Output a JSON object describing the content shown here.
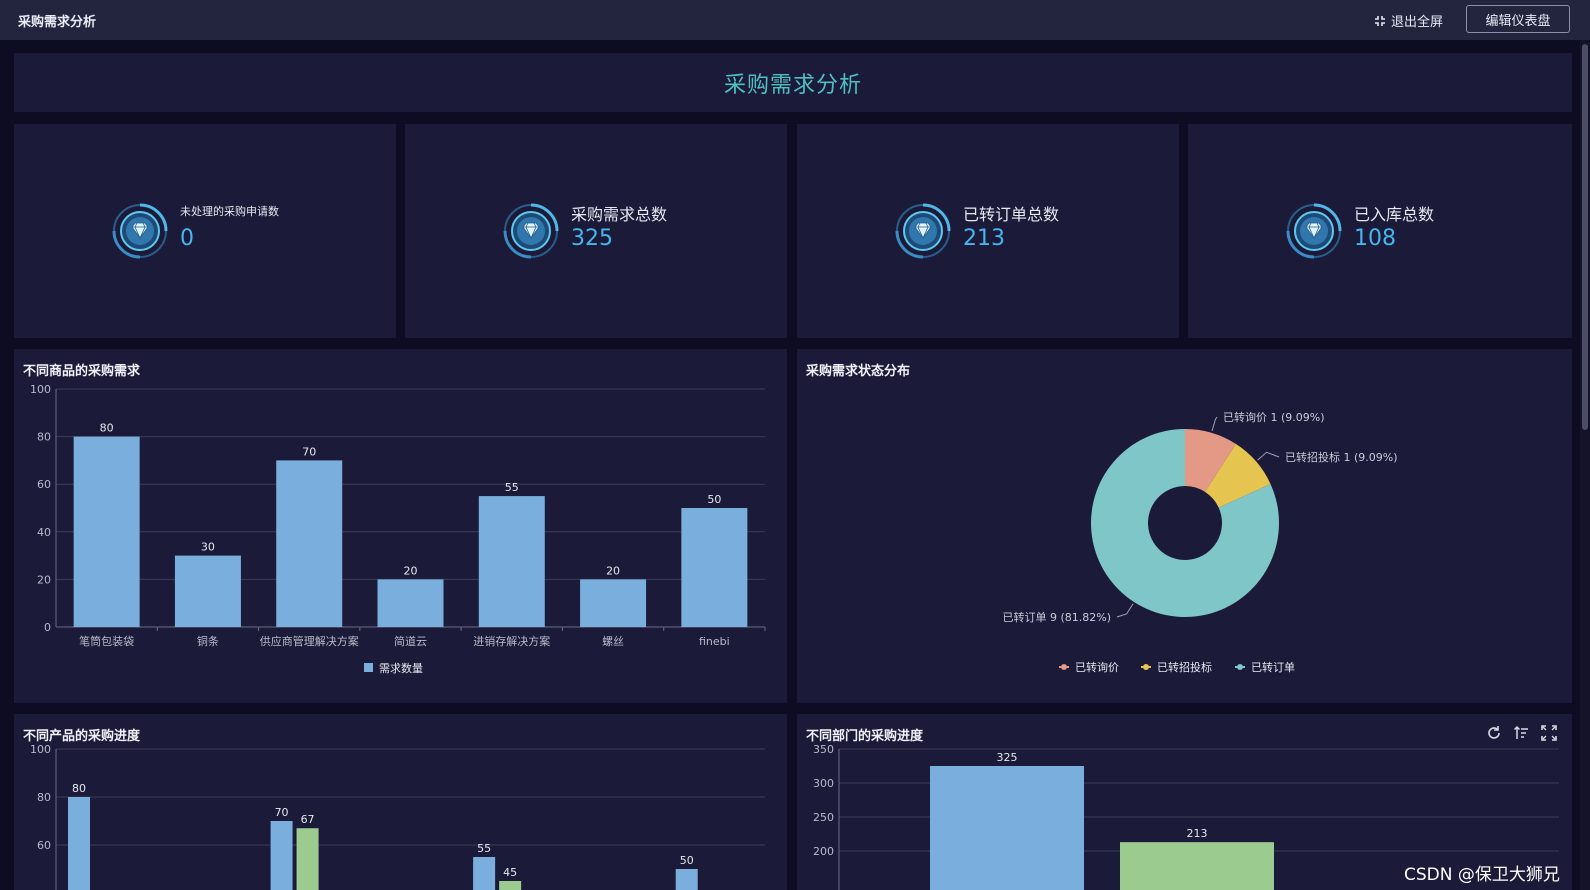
{
  "topbar": {
    "title": "采购需求分析",
    "exit_fullscreen": "退出全屏",
    "edit_dashboard": "编辑仪表盘"
  },
  "dashboard_title": "采购需求分析",
  "kpis": [
    {
      "label": "未处理的采购申请数",
      "value": "0",
      "icon": "diamond-badge-icon"
    },
    {
      "label": "采购需求总数",
      "value": "325",
      "icon": "diamond-badge-icon"
    },
    {
      "label": "已转订单总数",
      "value": "213",
      "icon": "diamond-badge-icon"
    },
    {
      "label": "已入库总数",
      "value": "108",
      "icon": "diamond-badge-icon"
    }
  ],
  "panels": {
    "bar1_title": "不同商品的采购需求",
    "pie_title": "采购需求状态分布",
    "bar2_title": "不同产品的采购进度",
    "bar3_title": "不同部门的采购进度"
  },
  "toolbar_icons": [
    "refresh-icon",
    "sort-icon",
    "fullscreen-icon"
  ],
  "colors": {
    "accent": "#4fc0c2",
    "kpi_value": "#46b6f0",
    "bar_blue": "#7aaedd",
    "bar_green": "#9bcb8e",
    "pie_red": "#e39985",
    "pie_yellow": "#e5c44f",
    "pie_teal": "#7ec6c8"
  },
  "chart_data": [
    {
      "type": "bar",
      "categories": [
        "笔筒包装袋",
        "铜条",
        "供应商管理解决方案",
        "简道云",
        "进销存解决方案",
        "螺丝",
        "finebi"
      ],
      "series": [
        {
          "name": "需求数量",
          "values": [
            80,
            30,
            70,
            20,
            55,
            20,
            50
          ]
        }
      ],
      "ylim": [
        0,
        100
      ],
      "yticks": [
        0,
        20,
        40,
        60,
        80,
        100
      ],
      "legend": "bottom",
      "grid": true
    },
    {
      "type": "pie",
      "donut": true,
      "slices": [
        {
          "name": "已转询价",
          "value": 1,
          "label": "已转询价 1 (9.09%)"
        },
        {
          "name": "已转招投标",
          "value": 1,
          "label": "已转招投标 1 (9.09%)"
        },
        {
          "name": "已转订单",
          "value": 9,
          "label": "已转订单 9 (81.82%)"
        }
      ],
      "legend": "bottom"
    },
    {
      "type": "bar",
      "yticks": [
        60,
        80,
        100
      ],
      "grid": true,
      "bars": [
        {
          "value": 80,
          "series": 0,
          "group": 0
        },
        {
          "value": 70,
          "series": 0,
          "group": 2
        },
        {
          "value": 67,
          "series": 1,
          "group": 2
        },
        {
          "value": 55,
          "series": 0,
          "group": 4
        },
        {
          "value": 45,
          "series": 1,
          "group": 4
        },
        {
          "value": 50,
          "series": 0,
          "group": 6
        }
      ]
    },
    {
      "type": "bar",
      "yticks": [
        200,
        250,
        300,
        350
      ],
      "grid": true,
      "bars": [
        {
          "value": 325,
          "series": 0
        },
        {
          "value": 213,
          "series": 1
        }
      ]
    }
  ],
  "watermark": "CSDN @保卫大狮兄"
}
